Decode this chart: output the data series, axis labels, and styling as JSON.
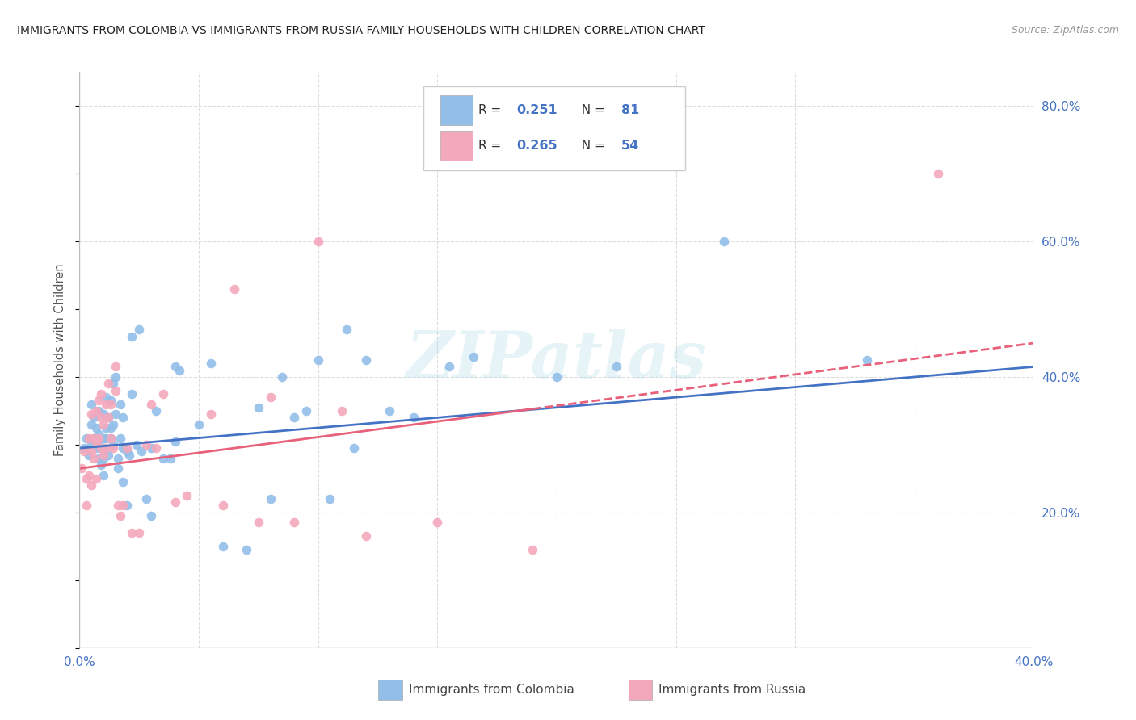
{
  "title": "IMMIGRANTS FROM COLOMBIA VS IMMIGRANTS FROM RUSSIA FAMILY HOUSEHOLDS WITH CHILDREN CORRELATION CHART",
  "source": "Source: ZipAtlas.com",
  "ylabel": "Family Households with Children",
  "xlim": [
    0.0,
    0.4
  ],
  "ylim": [
    0.0,
    0.85
  ],
  "x_ticks": [
    0.0,
    0.05,
    0.1,
    0.15,
    0.2,
    0.25,
    0.3,
    0.35,
    0.4
  ],
  "y_ticks_right": [
    0.2,
    0.4,
    0.6,
    0.8
  ],
  "colombia_color": "#92BEE8",
  "russia_color": "#F4A8BC",
  "colombia_R": 0.251,
  "colombia_N": 81,
  "russia_R": 0.265,
  "russia_N": 54,
  "colombia_line_color": "#4472C4",
  "russia_line_color": "#E8607A",
  "value_text_color": "#4472C4",
  "watermark": "ZIPatlas",
  "colombia_points_x": [
    0.002,
    0.003,
    0.004,
    0.005,
    0.005,
    0.005,
    0.006,
    0.006,
    0.007,
    0.007,
    0.007,
    0.008,
    0.008,
    0.008,
    0.008,
    0.009,
    0.009,
    0.01,
    0.01,
    0.01,
    0.01,
    0.01,
    0.011,
    0.011,
    0.011,
    0.012,
    0.012,
    0.013,
    0.013,
    0.013,
    0.014,
    0.014,
    0.014,
    0.015,
    0.015,
    0.016,
    0.016,
    0.017,
    0.017,
    0.018,
    0.018,
    0.018,
    0.02,
    0.02,
    0.021,
    0.022,
    0.022,
    0.024,
    0.025,
    0.026,
    0.028,
    0.03,
    0.03,
    0.032,
    0.035,
    0.038,
    0.04,
    0.04,
    0.042,
    0.05,
    0.055,
    0.06,
    0.07,
    0.075,
    0.08,
    0.085,
    0.09,
    0.095,
    0.1,
    0.105,
    0.112,
    0.115,
    0.12,
    0.13,
    0.14,
    0.155,
    0.165,
    0.2,
    0.225,
    0.27,
    0.33
  ],
  "colombia_points_y": [
    0.295,
    0.31,
    0.285,
    0.3,
    0.33,
    0.36,
    0.31,
    0.34,
    0.295,
    0.31,
    0.325,
    0.28,
    0.3,
    0.315,
    0.35,
    0.27,
    0.295,
    0.255,
    0.28,
    0.295,
    0.31,
    0.345,
    0.31,
    0.325,
    0.37,
    0.285,
    0.34,
    0.31,
    0.325,
    0.365,
    0.3,
    0.33,
    0.39,
    0.345,
    0.4,
    0.265,
    0.28,
    0.31,
    0.36,
    0.245,
    0.295,
    0.34,
    0.21,
    0.29,
    0.285,
    0.46,
    0.375,
    0.3,
    0.47,
    0.29,
    0.22,
    0.195,
    0.295,
    0.35,
    0.28,
    0.28,
    0.415,
    0.305,
    0.41,
    0.33,
    0.42,
    0.15,
    0.145,
    0.355,
    0.22,
    0.4,
    0.34,
    0.35,
    0.425,
    0.22,
    0.47,
    0.295,
    0.425,
    0.35,
    0.34,
    0.415,
    0.43,
    0.4,
    0.415,
    0.6,
    0.425
  ],
  "russia_points_x": [
    0.001,
    0.002,
    0.003,
    0.003,
    0.004,
    0.004,
    0.005,
    0.005,
    0.005,
    0.006,
    0.006,
    0.007,
    0.007,
    0.007,
    0.008,
    0.008,
    0.009,
    0.009,
    0.009,
    0.01,
    0.01,
    0.011,
    0.011,
    0.012,
    0.012,
    0.013,
    0.013,
    0.014,
    0.015,
    0.015,
    0.016,
    0.017,
    0.018,
    0.02,
    0.022,
    0.025,
    0.028,
    0.03,
    0.032,
    0.035,
    0.04,
    0.045,
    0.055,
    0.06,
    0.065,
    0.075,
    0.08,
    0.09,
    0.1,
    0.11,
    0.12,
    0.15,
    0.19,
    0.36
  ],
  "russia_points_y": [
    0.265,
    0.29,
    0.21,
    0.25,
    0.255,
    0.31,
    0.24,
    0.29,
    0.345,
    0.28,
    0.31,
    0.25,
    0.305,
    0.35,
    0.31,
    0.365,
    0.295,
    0.34,
    0.375,
    0.285,
    0.33,
    0.295,
    0.36,
    0.34,
    0.39,
    0.31,
    0.36,
    0.295,
    0.38,
    0.415,
    0.21,
    0.195,
    0.21,
    0.295,
    0.17,
    0.17,
    0.3,
    0.36,
    0.295,
    0.375,
    0.215,
    0.225,
    0.345,
    0.21,
    0.53,
    0.185,
    0.37,
    0.185,
    0.6,
    0.35,
    0.165,
    0.185,
    0.145,
    0.7
  ],
  "colombia_trend_x": [
    0.0,
    0.4
  ],
  "colombia_trend_y": [
    0.295,
    0.415
  ],
  "russia_trend_x": [
    0.0,
    0.4
  ],
  "russia_trend_y": [
    0.265,
    0.45
  ],
  "background_color": "#FFFFFF",
  "grid_color": "#DDDDDD",
  "bottom_legend_colombia": "Immigrants from Colombia",
  "bottom_legend_russia": "Immigrants from Russia"
}
